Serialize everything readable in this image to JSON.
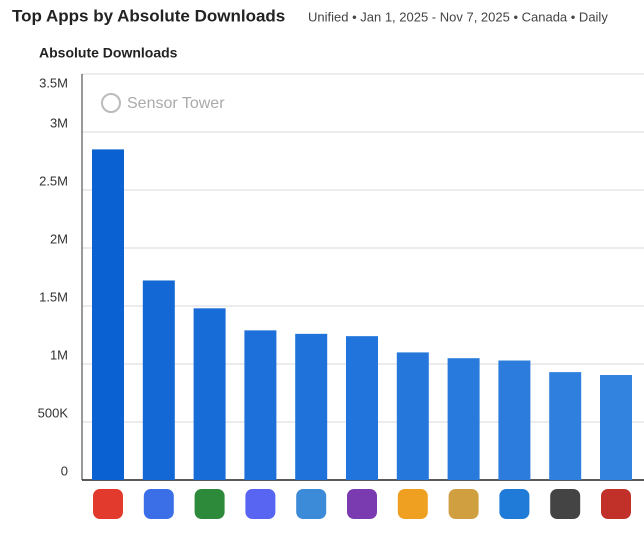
{
  "chart_data": {
    "type": "bar",
    "title": "Top Apps by Absolute Downloads",
    "subtitle": "Unified • Jan 1, 2025 - Nov 7, 2025 • Canada • Daily",
    "y_label": "Absolute Downloads",
    "watermark": "Sensor Tower",
    "categories": [
      null,
      null,
      null,
      null,
      null,
      null,
      null,
      null,
      null,
      null,
      null
    ],
    "values": [
      2850000,
      1720000,
      1480000,
      1290000,
      1260000,
      1240000,
      1100000,
      1050000,
      1030000,
      930000,
      905000
    ],
    "colors": [
      "#0a61d2",
      "#1468d6",
      "#186cd8",
      "#1d70da",
      "#1f72da",
      "#2174db",
      "#2577dc",
      "#287adc",
      "#2b7cdd",
      "#2f80de",
      "#3282df"
    ],
    "ylim": [
      0,
      3500000
    ],
    "yticks": [
      0,
      {
        "value": 500000,
        "label": "500K"
      },
      {
        "value": 1000000,
        "label": "1M"
      },
      {
        "value": 1500000,
        "label": "1.5M"
      },
      {
        "value": 2000000,
        "label": "2M"
      },
      {
        "value": 2500000,
        "label": "2.5M"
      },
      {
        "value": 3000000,
        "label": "3M"
      },
      {
        "value": 3500000,
        "label": "3.5M"
      }
    ],
    "grid": true
  }
}
